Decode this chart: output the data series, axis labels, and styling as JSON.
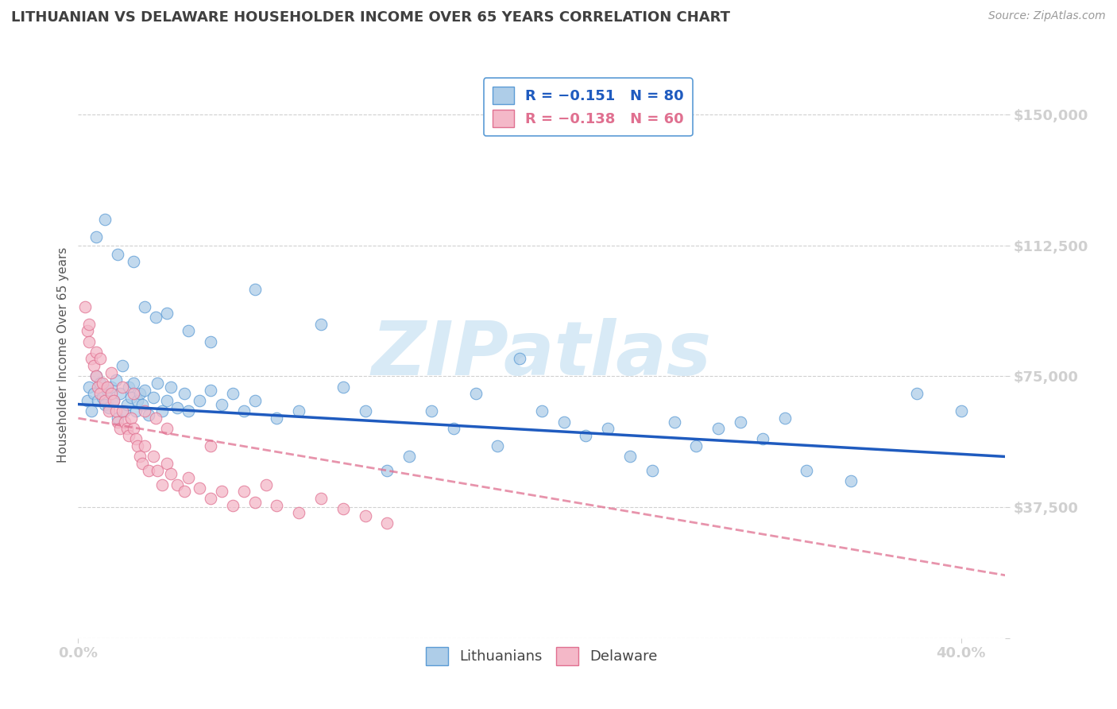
{
  "title": "LITHUANIAN VS DELAWARE HOUSEHOLDER INCOME OVER 65 YEARS CORRELATION CHART",
  "source": "Source: ZipAtlas.com",
  "ylabel": "Householder Income Over 65 years",
  "xlim": [
    0.0,
    0.42
  ],
  "ylim": [
    0,
    162500
  ],
  "yticks": [
    0,
    37500,
    75000,
    112500,
    150000
  ],
  "ytick_labels": [
    "",
    "$37,500",
    "$75,000",
    "$112,500",
    "$150,000"
  ],
  "xtick_positions": [
    0.0,
    0.4
  ],
  "xtick_labels": [
    "0.0%",
    "40.0%"
  ],
  "legend_blue_label": "R = −0.151   N = 80",
  "legend_pink_label": "R = −0.138   N = 60",
  "blue_color": "#aecde8",
  "blue_edge_color": "#5b9bd5",
  "blue_line_color": "#1f5bbf",
  "pink_color": "#f4b8c8",
  "pink_edge_color": "#e07090",
  "pink_line_color": "#e07090",
  "title_color": "#404040",
  "axis_tick_color": "#5b9bd5",
  "source_color": "#999999",
  "watermark_color": "#d8eaf6",
  "grid_color": "#d0d0d0",
  "blue_trend_x": [
    0.0,
    0.42
  ],
  "blue_trend_y": [
    67000,
    52000
  ],
  "pink_trend_x": [
    0.0,
    0.42
  ],
  "pink_trend_y": [
    63000,
    18000
  ],
  "blue_scatter_x": [
    0.004,
    0.005,
    0.006,
    0.007,
    0.008,
    0.009,
    0.01,
    0.011,
    0.012,
    0.013,
    0.014,
    0.015,
    0.016,
    0.017,
    0.018,
    0.019,
    0.02,
    0.021,
    0.022,
    0.023,
    0.024,
    0.025,
    0.026,
    0.027,
    0.028,
    0.029,
    0.03,
    0.032,
    0.034,
    0.036,
    0.038,
    0.04,
    0.042,
    0.045,
    0.048,
    0.05,
    0.055,
    0.06,
    0.065,
    0.07,
    0.075,
    0.08,
    0.09,
    0.1,
    0.11,
    0.12,
    0.13,
    0.14,
    0.15,
    0.16,
    0.17,
    0.18,
    0.19,
    0.2,
    0.21,
    0.22,
    0.23,
    0.24,
    0.25,
    0.26,
    0.27,
    0.28,
    0.29,
    0.3,
    0.31,
    0.32,
    0.33,
    0.35,
    0.38,
    0.4,
    0.008,
    0.012,
    0.018,
    0.025,
    0.03,
    0.035,
    0.04,
    0.05,
    0.06,
    0.08
  ],
  "blue_scatter_y": [
    68000,
    72000,
    65000,
    70000,
    75000,
    68000,
    73000,
    69000,
    67000,
    71000,
    66000,
    72000,
    68000,
    74000,
    63000,
    70000,
    78000,
    65000,
    67000,
    72000,
    69000,
    73000,
    65000,
    68000,
    70000,
    67000,
    71000,
    64000,
    69000,
    73000,
    65000,
    68000,
    72000,
    66000,
    70000,
    65000,
    68000,
    71000,
    67000,
    70000,
    65000,
    68000,
    63000,
    65000,
    90000,
    72000,
    65000,
    48000,
    52000,
    65000,
    60000,
    70000,
    55000,
    80000,
    65000,
    62000,
    58000,
    60000,
    52000,
    48000,
    62000,
    55000,
    60000,
    62000,
    57000,
    63000,
    48000,
    45000,
    70000,
    65000,
    115000,
    120000,
    110000,
    108000,
    95000,
    92000,
    93000,
    88000,
    85000,
    100000
  ],
  "pink_scatter_x": [
    0.003,
    0.004,
    0.005,
    0.006,
    0.007,
    0.008,
    0.009,
    0.01,
    0.011,
    0.012,
    0.013,
    0.014,
    0.015,
    0.016,
    0.017,
    0.018,
    0.019,
    0.02,
    0.021,
    0.022,
    0.023,
    0.024,
    0.025,
    0.026,
    0.027,
    0.028,
    0.029,
    0.03,
    0.032,
    0.034,
    0.036,
    0.038,
    0.04,
    0.042,
    0.045,
    0.048,
    0.05,
    0.055,
    0.06,
    0.065,
    0.07,
    0.075,
    0.08,
    0.085,
    0.09,
    0.1,
    0.11,
    0.12,
    0.13,
    0.14,
    0.005,
    0.008,
    0.01,
    0.015,
    0.02,
    0.025,
    0.03,
    0.035,
    0.04,
    0.06
  ],
  "pink_scatter_y": [
    95000,
    88000,
    85000,
    80000,
    78000,
    75000,
    72000,
    70000,
    73000,
    68000,
    72000,
    65000,
    70000,
    68000,
    65000,
    62000,
    60000,
    65000,
    62000,
    60000,
    58000,
    63000,
    60000,
    57000,
    55000,
    52000,
    50000,
    55000,
    48000,
    52000,
    48000,
    44000,
    50000,
    47000,
    44000,
    42000,
    46000,
    43000,
    40000,
    42000,
    38000,
    42000,
    39000,
    44000,
    38000,
    36000,
    40000,
    37000,
    35000,
    33000,
    90000,
    82000,
    80000,
    76000,
    72000,
    70000,
    65000,
    63000,
    60000,
    55000
  ]
}
